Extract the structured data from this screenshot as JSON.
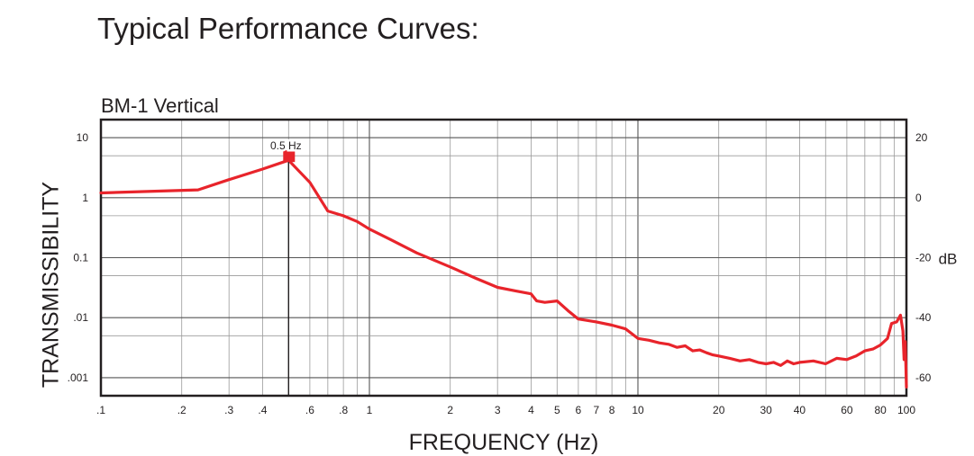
{
  "page_title": "Typical Performance Curves:",
  "chart_data": {
    "type": "line",
    "title": "BM-1 Vertical",
    "xlabel": "FREQUENCY (Hz)",
    "ylabel": "TRANSMISSIBILITY",
    "y2label": "dB",
    "x_scale": "log",
    "y_scale": "log",
    "xlim": [
      0.1,
      100
    ],
    "ylim": [
      0.0005,
      20
    ],
    "y2lim": [
      -66,
      26
    ],
    "grid": true,
    "x_ticks": [
      {
        "v": 0.1,
        "label": ".1"
      },
      {
        "v": 0.2,
        "label": ".2"
      },
      {
        "v": 0.3,
        "label": ".3"
      },
      {
        "v": 0.4,
        "label": ".4"
      },
      {
        "v": 0.6,
        "label": ".6"
      },
      {
        "v": 0.8,
        "label": ".8"
      },
      {
        "v": 1,
        "label": "1"
      },
      {
        "v": 2,
        "label": "2"
      },
      {
        "v": 3,
        "label": "3"
      },
      {
        "v": 4,
        "label": "4"
      },
      {
        "v": 5,
        "label": "5"
      },
      {
        "v": 6,
        "label": "6"
      },
      {
        "v": 7,
        "label": "7"
      },
      {
        "v": 8,
        "label": "8"
      },
      {
        "v": 10,
        "label": "10"
      },
      {
        "v": 20,
        "label": "20"
      },
      {
        "v": 30,
        "label": "30"
      },
      {
        "v": 40,
        "label": "40"
      },
      {
        "v": 60,
        "label": "60"
      },
      {
        "v": 80,
        "label": "80"
      },
      {
        "v": 100,
        "label": "100"
      }
    ],
    "y_ticks": [
      {
        "v": 10,
        "label": "10"
      },
      {
        "v": 1,
        "label": "1"
      },
      {
        "v": 0.1,
        "label": "0.1"
      },
      {
        "v": 0.01,
        "label": ".01"
      },
      {
        "v": 0.001,
        "label": ".001"
      }
    ],
    "y2_ticks": [
      {
        "v": 20,
        "label": "20"
      },
      {
        "v": 0,
        "label": "0"
      },
      {
        "v": -20,
        "label": "-20"
      },
      {
        "v": -40,
        "label": "-40"
      },
      {
        "v": -60,
        "label": "-60"
      }
    ],
    "annotation": {
      "label": "0.5 Hz",
      "x": 0.5,
      "y": 5
    },
    "series": [
      {
        "color": "#e8242b",
        "x": [
          0.1,
          0.23,
          0.3,
          0.4,
          0.5,
          0.6,
          0.7,
          0.8,
          0.9,
          1.0,
          1.2,
          1.5,
          2.0,
          2.5,
          3.0,
          3.5,
          4.0,
          4.2,
          4.5,
          5.0,
          5.5,
          6.0,
          7.0,
          8.0,
          9.0,
          10,
          11,
          12,
          13,
          14,
          15,
          16,
          17,
          18,
          19,
          20,
          22,
          24,
          26,
          28,
          30,
          32,
          34,
          36,
          38,
          40,
          45,
          50,
          55,
          60,
          65,
          70,
          75,
          80,
          85,
          88,
          92,
          95,
          97,
          98,
          99,
          100
        ],
        "values": [
          1.2,
          1.35,
          2.0,
          3.0,
          4.2,
          1.8,
          0.6,
          0.5,
          0.4,
          0.3,
          0.2,
          0.12,
          0.07,
          0.045,
          0.032,
          0.028,
          0.025,
          0.019,
          0.018,
          0.019,
          0.013,
          0.0095,
          0.0085,
          0.0075,
          0.0065,
          0.0045,
          0.0042,
          0.0038,
          0.0036,
          0.0032,
          0.0034,
          0.0028,
          0.0029,
          0.0026,
          0.0024,
          0.0023,
          0.0021,
          0.0019,
          0.002,
          0.0018,
          0.0017,
          0.0018,
          0.0016,
          0.0019,
          0.0017,
          0.0018,
          0.0019,
          0.0017,
          0.0021,
          0.002,
          0.0023,
          0.0028,
          0.003,
          0.0035,
          0.0045,
          0.008,
          0.0085,
          0.011,
          0.006,
          0.002,
          0.004,
          0.0007
        ]
      }
    ]
  }
}
